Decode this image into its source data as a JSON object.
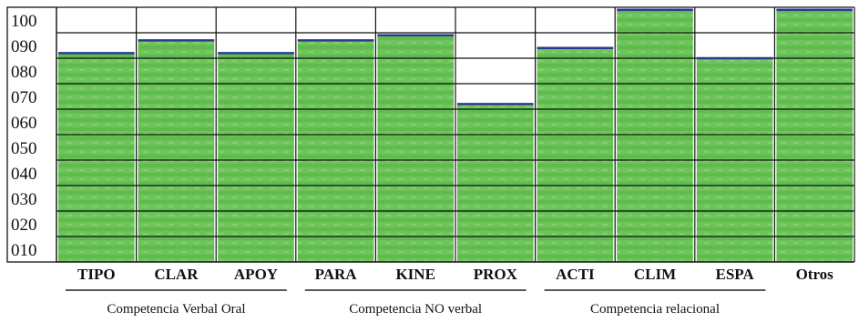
{
  "chart_data": {
    "type": "bar",
    "categories": [
      "TIPO",
      "CLAR",
      "APOY",
      "PARA",
      "KINE",
      "PROX",
      "ACTI",
      "CLIM",
      "ESPA",
      "Otros"
    ],
    "values": [
      82,
      87,
      82,
      87,
      89,
      62,
      84,
      99,
      80,
      99
    ],
    "ylim": [
      0,
      100
    ],
    "yticks": [
      "100",
      "090",
      "080",
      "070",
      "060",
      "050",
      "040",
      "030",
      "020",
      "010"
    ],
    "grid": true,
    "groups": [
      {
        "label": "Competencia Verbal Oral",
        "categories": [
          "TIPO",
          "CLAR",
          "APOY"
        ]
      },
      {
        "label": "Competencia NO verbal",
        "categories": [
          "PARA",
          "KINE",
          "PROX"
        ]
      },
      {
        "label": "Competencia relacional",
        "categories": [
          "ACTI",
          "CLIM",
          "ESPA"
        ]
      }
    ],
    "colors": {
      "bar_fill": "#6cc45a",
      "bar_fill_dark": "#57b347",
      "bar_top": "#2b3a8f",
      "grid": "#111111"
    }
  }
}
